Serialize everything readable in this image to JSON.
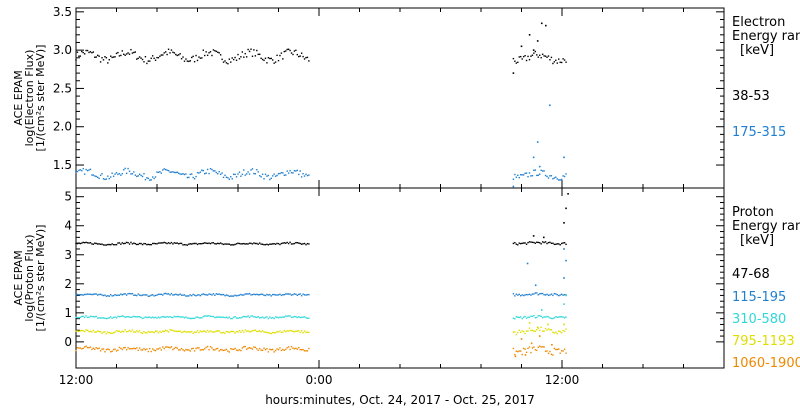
{
  "chart_data": [
    {
      "type": "scatter",
      "panel": "electron",
      "ylabel_lines": [
        "ACE EPAM",
        "log(Electron Flux)",
        "[1/(cm²s ster MeV)]"
      ],
      "ylim": [
        1.2,
        3.55
      ],
      "yticks": [
        1.5,
        2.0,
        2.5,
        3.0,
        3.5
      ],
      "ytick_labels": [
        "1.5",
        "2.0",
        "2.5",
        "3.0",
        "3.5"
      ],
      "legend_title": [
        "Electron",
        "Energy ran",
        "[keV]"
      ],
      "legend_position": "right",
      "series": [
        {
          "name": "38-53",
          "color": "#000000",
          "segments": [
            {
              "x_start": 0,
              "x_end": 11.5,
              "level": 2.92,
              "wobble": 0.05,
              "jitter": 0.05
            },
            {
              "x_start": 21.6,
              "x_end": 24.2,
              "level": 2.9,
              "wobble": 0.04,
              "jitter": 0.05
            }
          ],
          "extra_points": [
            [
              21.6,
              2.7
            ],
            [
              22.0,
              3.05
            ],
            [
              22.4,
              3.2
            ],
            [
              23.0,
              3.35
            ],
            [
              23.2,
              3.32
            ],
            [
              22.8,
              3.12
            ],
            [
              22.6,
              3.0
            ]
          ]
        },
        {
          "name": "175-315",
          "color": "#1f7fd0",
          "segments": [
            {
              "x_start": 0,
              "x_end": 11.5,
              "level": 1.38,
              "wobble": 0.04,
              "jitter": 0.04
            },
            {
              "x_start": 21.6,
              "x_end": 24.2,
              "level": 1.37,
              "wobble": 0.03,
              "jitter": 0.04
            }
          ],
          "extra_points": [
            [
              21.6,
              1.22
            ],
            [
              22.6,
              1.6
            ],
            [
              22.8,
              1.8
            ],
            [
              23.4,
              2.28
            ],
            [
              24.1,
              1.6
            ],
            [
              22.9,
              1.48
            ]
          ]
        }
      ]
    },
    {
      "type": "scatter",
      "panel": "proton",
      "ylabel_lines": [
        "ACE EPAM",
        "log(Proton Flux)",
        "[1/(cm²s ster MeV)]"
      ],
      "ylim": [
        -0.9,
        5.3
      ],
      "yticks": [
        0,
        1,
        2,
        3,
        4,
        5
      ],
      "ytick_labels": [
        "0",
        "1",
        "2",
        "3",
        "4",
        "5"
      ],
      "legend_title": [
        "Proton",
        "Energy ran",
        "[keV]"
      ],
      "legend_position": "right",
      "series": [
        {
          "name": "47-68",
          "color": "#000000",
          "segments": [
            {
              "x_start": 0,
              "x_end": 11.5,
              "level": 3.38,
              "wobble": 0.02,
              "jitter": 0.03
            },
            {
              "x_start": 21.6,
              "x_end": 24.2,
              "level": 3.4,
              "wobble": 0.02,
              "jitter": 0.04
            }
          ],
          "extra_points": [
            [
              24.1,
              4.1
            ],
            [
              24.2,
              4.6
            ],
            [
              24.3,
              5.1
            ],
            [
              22.6,
              3.65
            ],
            [
              23.1,
              3.6
            ]
          ]
        },
        {
          "name": "115-195",
          "color": "#1f7fd0",
          "segments": [
            {
              "x_start": 0,
              "x_end": 11.5,
              "level": 1.62,
              "wobble": 0.02,
              "jitter": 0.03
            },
            {
              "x_start": 21.6,
              "x_end": 24.2,
              "level": 1.64,
              "wobble": 0.02,
              "jitter": 0.04
            }
          ],
          "extra_points": [
            [
              24.1,
              2.2
            ],
            [
              24.2,
              2.8
            ],
            [
              24.1,
              3.2
            ],
            [
              22.3,
              2.7
            ],
            [
              22.7,
              1.95
            ]
          ]
        },
        {
          "name": "310-580",
          "color": "#30d8d8",
          "segments": [
            {
              "x_start": 0,
              "x_end": 11.5,
              "level": 0.85,
              "wobble": 0.02,
              "jitter": 0.03
            },
            {
              "x_start": 21.6,
              "x_end": 24.2,
              "level": 0.85,
              "wobble": 0.02,
              "jitter": 0.04
            }
          ],
          "extra_points": [
            [
              24.1,
              1.3
            ],
            [
              24.2,
              1.6
            ],
            [
              23.0,
              1.1
            ]
          ]
        },
        {
          "name": "795-1193",
          "color": "#dede00",
          "segments": [
            {
              "x_start": 0,
              "x_end": 11.5,
              "level": 0.35,
              "wobble": 0.03,
              "jitter": 0.04
            },
            {
              "x_start": 21.6,
              "x_end": 24.2,
              "level": 0.38,
              "wobble": 0.05,
              "jitter": 0.08
            }
          ],
          "extra_points": [
            [
              22.4,
              0.65
            ],
            [
              22.8,
              0.5
            ],
            [
              23.3,
              0.6
            ],
            [
              24.1,
              0.6
            ]
          ]
        },
        {
          "name": "1060-1900",
          "color": "#ee8800",
          "segments": [
            {
              "x_start": 0,
              "x_end": 11.5,
              "level": -0.25,
              "wobble": 0.04,
              "jitter": 0.06
            },
            {
              "x_start": 21.6,
              "x_end": 24.2,
              "level": -0.3,
              "wobble": 0.05,
              "jitter": 0.12
            }
          ],
          "extra_points": [
            [
              22.0,
              0.1
            ],
            [
              22.5,
              -0.05
            ],
            [
              22.9,
              0.2
            ],
            [
              23.5,
              -0.1
            ],
            [
              21.7,
              -0.5
            ],
            [
              22.2,
              -0.45
            ]
          ]
        }
      ]
    }
  ],
  "x_axis": {
    "xlim": [
      0,
      32
    ],
    "major_ticks": [
      0,
      12,
      24
    ],
    "major_labels": [
      "12:00",
      "0:00",
      "12:00"
    ],
    "minor_step": 2,
    "xlabel": "hours:minutes, Oct. 24, 2017 - Oct. 25, 2017"
  }
}
